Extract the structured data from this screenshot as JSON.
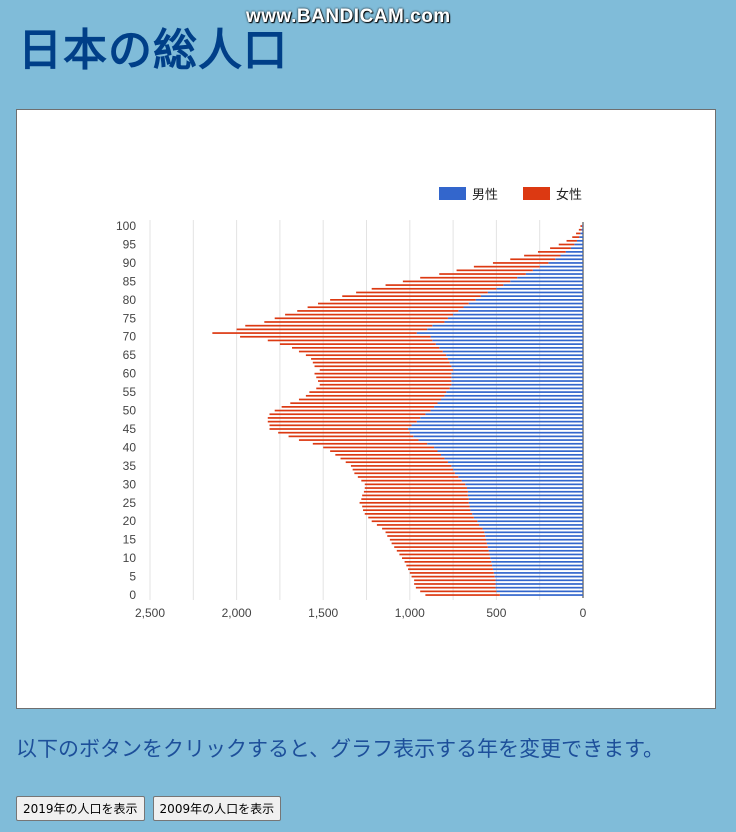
{
  "page": {
    "title": "日本の総人口",
    "watermark": "www.BANDICAM.com",
    "instruction": "以下のボタンをクリックすると、グラフ表示する年を変更できます。"
  },
  "buttons": [
    {
      "label": "2019年の人口を表示"
    },
    {
      "label": "2009年の人口を表示"
    }
  ],
  "colors": {
    "male": "#3366cc",
    "female": "#dc3912",
    "background": "#80bcd9"
  },
  "chart_data": {
    "type": "bar",
    "orientation": "horizontal-stacked-pyramid",
    "legend_position": "top-right",
    "legend": [
      "男性",
      "女性"
    ],
    "x_ticks": [
      "2,500",
      "2,000",
      "1,500",
      "1,000",
      "500",
      "0"
    ],
    "xlim": [
      0,
      2500
    ],
    "x_reversed": true,
    "y_ticks": [
      "0",
      "5",
      "10",
      "15",
      "20",
      "25",
      "30",
      "35",
      "40",
      "45",
      "50",
      "55",
      "60",
      "65",
      "70",
      "75",
      "80",
      "85",
      "90",
      "95",
      "100"
    ],
    "ages": [
      0,
      1,
      2,
      3,
      4,
      5,
      6,
      7,
      8,
      9,
      10,
      11,
      12,
      13,
      14,
      15,
      16,
      17,
      18,
      19,
      20,
      21,
      22,
      23,
      24,
      25,
      26,
      27,
      28,
      29,
      30,
      31,
      32,
      33,
      34,
      35,
      36,
      37,
      38,
      39,
      40,
      41,
      42,
      43,
      44,
      45,
      46,
      47,
      48,
      49,
      50,
      51,
      52,
      53,
      54,
      55,
      56,
      57,
      58,
      59,
      60,
      61,
      62,
      63,
      64,
      65,
      66,
      67,
      68,
      69,
      70,
      71,
      72,
      73,
      74,
      75,
      76,
      77,
      78,
      79,
      80,
      81,
      82,
      83,
      84,
      85,
      86,
      87,
      88,
      89,
      90,
      91,
      92,
      93,
      94,
      95,
      96,
      97,
      98,
      99,
      100
    ],
    "series": [
      {
        "name": "男性",
        "values": [
          480,
          500,
          505,
          505,
          505,
          510,
          515,
          520,
          525,
          530,
          535,
          540,
          545,
          550,
          555,
          560,
          565,
          570,
          580,
          600,
          610,
          630,
          640,
          650,
          655,
          660,
          660,
          665,
          665,
          670,
          680,
          700,
          720,
          740,
          750,
          760,
          780,
          800,
          820,
          840,
          860,
          900,
          950,
          980,
          1000,
          1010,
          990,
          960,
          940,
          910,
          880,
          860,
          840,
          820,
          800,
          790,
          770,
          760,
          760,
          760,
          760,
          750,
          760,
          770,
          780,
          790,
          810,
          830,
          850,
          870,
          880,
          960,
          900,
          870,
          800,
          780,
          750,
          720,
          690,
          660,
          620,
          590,
          550,
          500,
          460,
          420,
          380,
          330,
          290,
          250,
          200,
          160,
          130,
          100,
          70,
          50,
          35,
          22,
          15,
          9,
          5
        ]
      },
      {
        "name": "女性",
        "values": [
          430,
          440,
          460,
          470,
          470,
          480,
          485,
          490,
          495,
          500,
          510,
          520,
          530,
          540,
          550,
          555,
          565,
          570,
          580,
          590,
          610,
          610,
          620,
          620,
          620,
          630,
          620,
          610,
          600,
          590,
          580,
          580,
          580,
          580,
          580,
          580,
          590,
          600,
          610,
          620,
          640,
          660,
          690,
          720,
          760,
          800,
          820,
          860,
          880,
          900,
          900,
          880,
          850,
          820,
          800,
          790,
          770,
          760,
          770,
          780,
          790,
          770,
          790,
          790,
          790,
          810,
          830,
          850,
          900,
          950,
          1100,
          1180,
          1100,
          1080,
          1040,
          1000,
          970,
          930,
          900,
          870,
          840,
          800,
          760,
          720,
          680,
          620,
          560,
          500,
          440,
          380,
          320,
          260,
          210,
          160,
          120,
          90,
          60,
          40,
          25,
          15,
          10
        ]
      }
    ]
  }
}
